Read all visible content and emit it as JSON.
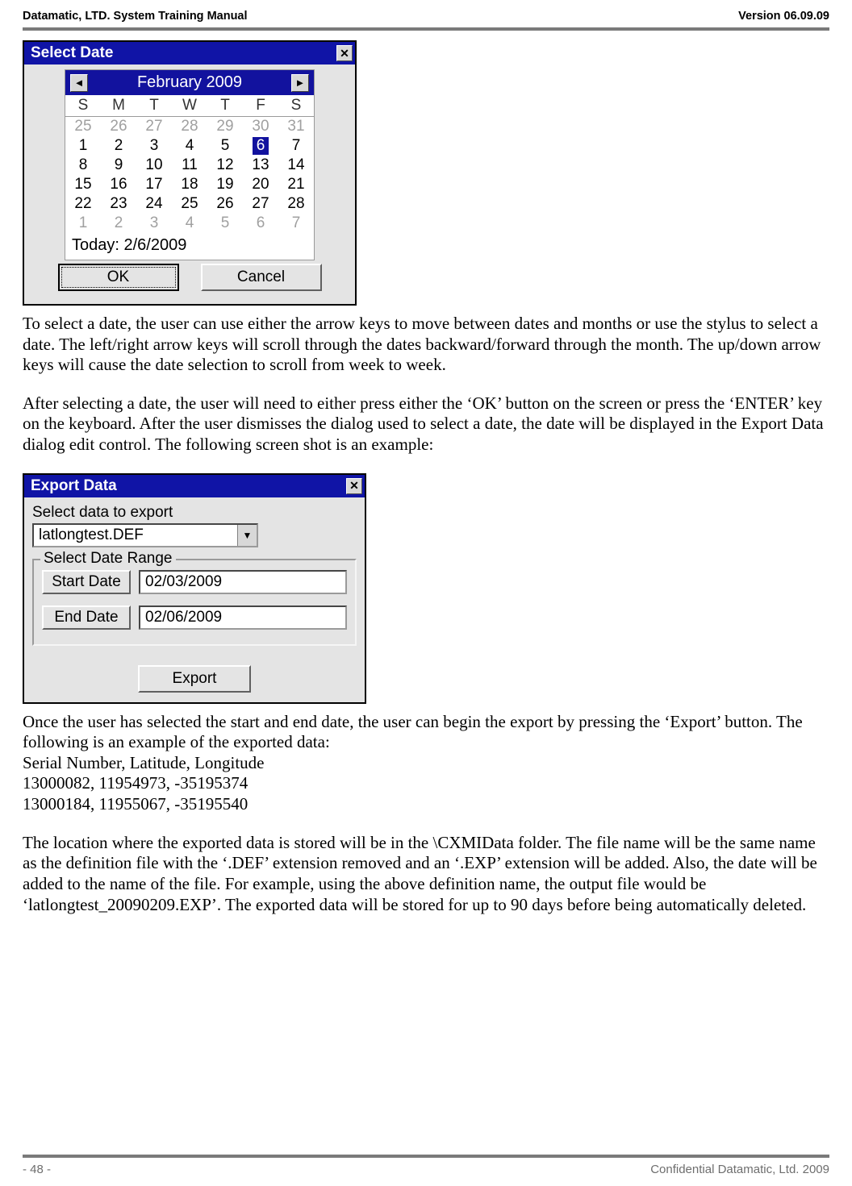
{
  "header": {
    "left": "Datamatic, LTD. System Training  Manual",
    "right": "Version 06.09.09"
  },
  "colors": {
    "rule": "#7a7a7a",
    "titlebar_bg": "#1014a6",
    "titlebar_fg": "#ffffff",
    "cal_head_bg": "#12129e",
    "dialog_bg": "#e4e4e4",
    "dim_text": "#a0a0a0"
  },
  "dlg1": {
    "title": "Select Date",
    "month_label": "February 2009",
    "day_headers": [
      "S",
      "M",
      "T",
      "W",
      "T",
      "F",
      "S"
    ],
    "weeks": [
      [
        {
          "d": "25",
          "dim": true
        },
        {
          "d": "26",
          "dim": true
        },
        {
          "d": "27",
          "dim": true
        },
        {
          "d": "28",
          "dim": true
        },
        {
          "d": "29",
          "dim": true
        },
        {
          "d": "30",
          "dim": true
        },
        {
          "d": "31",
          "dim": true
        }
      ],
      [
        {
          "d": "1"
        },
        {
          "d": "2"
        },
        {
          "d": "3"
        },
        {
          "d": "4"
        },
        {
          "d": "5"
        },
        {
          "d": "6",
          "sel": true
        },
        {
          "d": "7"
        }
      ],
      [
        {
          "d": "8"
        },
        {
          "d": "9"
        },
        {
          "d": "10"
        },
        {
          "d": "11"
        },
        {
          "d": "12"
        },
        {
          "d": "13"
        },
        {
          "d": "14"
        }
      ],
      [
        {
          "d": "15"
        },
        {
          "d": "16"
        },
        {
          "d": "17"
        },
        {
          "d": "18"
        },
        {
          "d": "19"
        },
        {
          "d": "20"
        },
        {
          "d": "21"
        }
      ],
      [
        {
          "d": "22"
        },
        {
          "d": "23"
        },
        {
          "d": "24"
        },
        {
          "d": "25"
        },
        {
          "d": "26"
        },
        {
          "d": "27"
        },
        {
          "d": "28"
        }
      ],
      [
        {
          "d": "1",
          "dim": true
        },
        {
          "d": "2",
          "dim": true
        },
        {
          "d": "3",
          "dim": true
        },
        {
          "d": "4",
          "dim": true
        },
        {
          "d": "5",
          "dim": true
        },
        {
          "d": "6",
          "dim": true
        },
        {
          "d": "7",
          "dim": true
        }
      ]
    ],
    "today_label": "Today: 2/6/2009",
    "ok_label": "OK",
    "cancel_label": "Cancel"
  },
  "para1": "To select a date, the user can use either the arrow keys to move between dates and months or use the stylus to select a date.  The left/right arrow keys will scroll through the dates backward/forward through the month.  The up/down arrow keys will cause the date selection to scroll from week to week.",
  "para2": "After selecting a date, the user will need to either press either the ‘OK’ button on the screen or press the ‘ENTER’ key on the keyboard.  After the user dismisses the dialog used to select a date, the date will be displayed in the Export Data dialog edit control.  The following screen shot is an example:",
  "dlg2": {
    "title": "Export Data",
    "select_label": "Select data to export",
    "combo_value": "latlongtest.DEF",
    "group_label": "Select Date Range",
    "start_btn": "Start Date",
    "start_val": "02/03/2009",
    "end_btn": "End Date",
    "end_val": "02/06/2009",
    "export_btn": "Export"
  },
  "para3a": "Once the user has selected the start and end date, the user can begin the export by pressing the ‘Export’ button.  The following is an example of the exported data:",
  "export_lines": [
    "Serial Number, Latitude, Longitude",
    "13000082, 11954973, -35195374",
    "13000184, 11955067, -35195540"
  ],
  "para4": "The location where the exported data is stored will be in the \\CXMIData folder.  The file name will be the same name as the definition file with the ‘.DEF’ extension removed and an ‘.EXP’ extension will be added.  Also, the date will be added to the name of the file.  For example, using the above definition name, the output file would be ‘latlongtest_20090209.EXP’.  The exported data will be stored for up to 90 days before being automatically deleted.",
  "footer": {
    "left": "- 48 -",
    "right": "Confidential Datamatic, Ltd. 2009"
  }
}
